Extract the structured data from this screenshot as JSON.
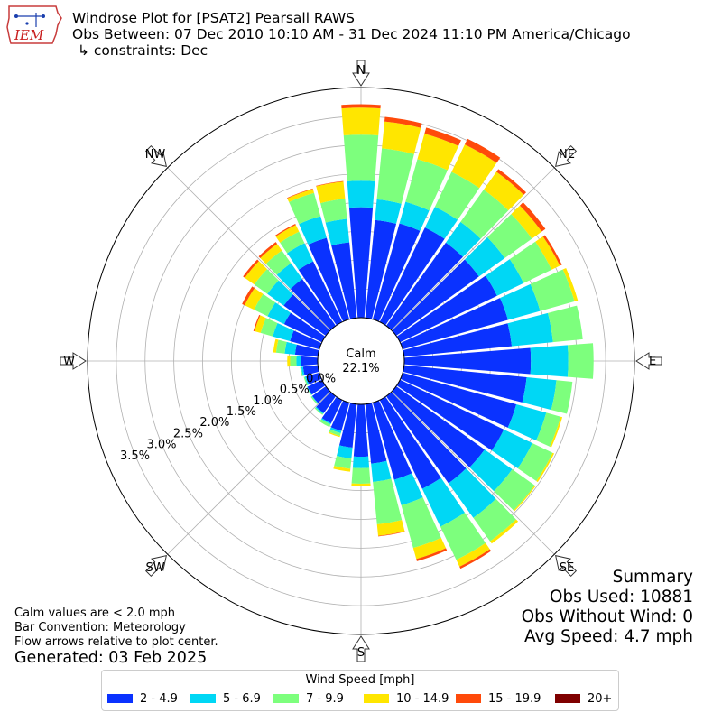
{
  "header": {
    "title": "Windrose Plot for [PSAT2] Pearsall RAWS",
    "obs_between": "Obs Between: 07 Dec 2010 10:10 AM - 31 Dec 2024 11:10 PM America/Chicago",
    "constraints": "↳ constraints: Dec"
  },
  "logo": {
    "text": "IEM"
  },
  "summary": {
    "heading": "Summary",
    "obs_used": "Obs Used: 10881",
    "obs_without_wind": "Obs Without Wind: 0",
    "avg_speed": "Avg Speed: 4.7 mph"
  },
  "notes": {
    "calm_note": "Calm values are < 2.0 mph",
    "bar_convention": "Bar Convention: Meteorology",
    "flow_arrows": "Flow arrows relative to plot center.",
    "generated": "Generated: 03 Feb 2025"
  },
  "legend": {
    "title": "Wind Speed [mph]",
    "items": [
      {
        "label": "2 - 4.9",
        "color": "#0a32ff"
      },
      {
        "label": "5 - 6.9",
        "color": "#00d7f5"
      },
      {
        "label": "7 - 9.9",
        "color": "#7dff7d"
      },
      {
        "label": "10 - 14.9",
        "color": "#ffe600"
      },
      {
        "label": "15 - 19.9",
        "color": "#ff4a0a"
      },
      {
        "label": "20+",
        "color": "#7f0000"
      }
    ]
  },
  "chart_data": {
    "type": "windrose",
    "calm_label": "Calm",
    "calm_percent": "22.1%",
    "radial_ticks": [
      0.0,
      0.5,
      1.0,
      1.5,
      2.0,
      2.5,
      3.0,
      3.5
    ],
    "radial_tick_labels": [
      "0.0%",
      "0.5%",
      "1.0%",
      "1.5%",
      "2.0%",
      "2.5%",
      "3.0%",
      "3.5%"
    ],
    "rmax": 4.0,
    "compass_labels": [
      "N",
      "NE",
      "E",
      "SE",
      "S",
      "SW",
      "W",
      "NW"
    ],
    "bins": [
      "2 - 4.9",
      "5 - 6.9",
      "7 - 9.9",
      "10 - 14.9",
      "15 - 19.9",
      "20+"
    ],
    "directions_deg": [
      0,
      10,
      20,
      30,
      40,
      50,
      60,
      70,
      80,
      90,
      100,
      110,
      120,
      130,
      140,
      150,
      160,
      170,
      180,
      190,
      200,
      210,
      220,
      230,
      240,
      250,
      260,
      270,
      280,
      290,
      300,
      310,
      320,
      330,
      340,
      350
    ],
    "cumulative_percent": [
      [
        1.92,
        2.38,
        3.18,
        3.65,
        3.71,
        3.71
      ],
      [
        1.71,
        2.07,
        2.96,
        3.43,
        3.51,
        3.51
      ],
      [
        1.73,
        2.12,
        2.89,
        3.35,
        3.46,
        3.46
      ],
      [
        1.82,
        2.22,
        2.89,
        3.42,
        3.53,
        3.53
      ],
      [
        1.78,
        2.22,
        2.91,
        3.29,
        3.35,
        3.35
      ],
      [
        1.77,
        2.32,
        2.9,
        3.11,
        3.19,
        3.19
      ],
      [
        1.87,
        2.38,
        2.92,
        3.08,
        3.12,
        3.12
      ],
      [
        1.9,
        2.48,
        3.1,
        3.16,
        3.16,
        3.16
      ],
      [
        1.88,
        2.6,
        3.12,
        3.12,
        3.12,
        3.12
      ],
      [
        2.2,
        2.85,
        3.29,
        3.29,
        3.29,
        3.29
      ],
      [
        2.14,
        2.66,
        2.94,
        2.94,
        2.94,
        2.94
      ],
      [
        2.05,
        2.59,
        2.85,
        2.88,
        2.88,
        2.88
      ],
      [
        2.0,
        2.55,
        2.94,
        2.97,
        2.97,
        2.97
      ],
      [
        1.89,
        2.48,
        2.96,
        2.98,
        2.98,
        2.98
      ],
      [
        1.86,
        2.6,
        3.1,
        3.15,
        3.15,
        3.15
      ],
      [
        1.71,
        2.44,
        3.08,
        3.21,
        3.25,
        3.25
      ],
      [
        1.39,
        1.85,
        2.62,
        2.82,
        2.86,
        2.86
      ],
      [
        1.04,
        1.36,
        2.1,
        2.3,
        2.31,
        2.31
      ],
      [
        0.91,
        1.11,
        1.38,
        1.42,
        1.42,
        1.42
      ],
      [
        0.76,
        0.95,
        1.13,
        1.18,
        1.18,
        1.18
      ],
      [
        0.51,
        0.55,
        0.6,
        0.62,
        0.62,
        0.62
      ],
      [
        0.45,
        0.47,
        0.52,
        0.52,
        0.52,
        0.52
      ],
      [
        0.36,
        0.38,
        0.4,
        0.4,
        0.4,
        0.4
      ],
      [
        0.29,
        0.3,
        0.32,
        0.32,
        0.32,
        0.32
      ],
      [
        0.28,
        0.29,
        0.3,
        0.3,
        0.3,
        0.3
      ],
      [
        0.24,
        0.26,
        0.28,
        0.28,
        0.28,
        0.28
      ],
      [
        0.26,
        0.29,
        0.31,
        0.31,
        0.31,
        0.31
      ],
      [
        0.29,
        0.37,
        0.48,
        0.53,
        0.53,
        0.53
      ],
      [
        0.4,
        0.58,
        0.73,
        0.78,
        0.78,
        0.78
      ],
      [
        0.53,
        0.84,
        1.06,
        1.17,
        1.19,
        1.19
      ],
      [
        0.73,
        1.05,
        1.31,
        1.49,
        1.54,
        1.54
      ],
      [
        0.9,
        1.25,
        1.53,
        1.73,
        1.77,
        1.77
      ],
      [
        1.0,
        1.34,
        1.61,
        1.75,
        1.79,
        1.79
      ],
      [
        1.17,
        1.52,
        1.74,
        1.87,
        1.89,
        1.89
      ],
      [
        1.47,
        1.86,
        2.28,
        2.35,
        2.36,
        2.36
      ],
      [
        1.32,
        1.73,
        2.08,
        2.38,
        2.39,
        2.39
      ]
    ]
  }
}
